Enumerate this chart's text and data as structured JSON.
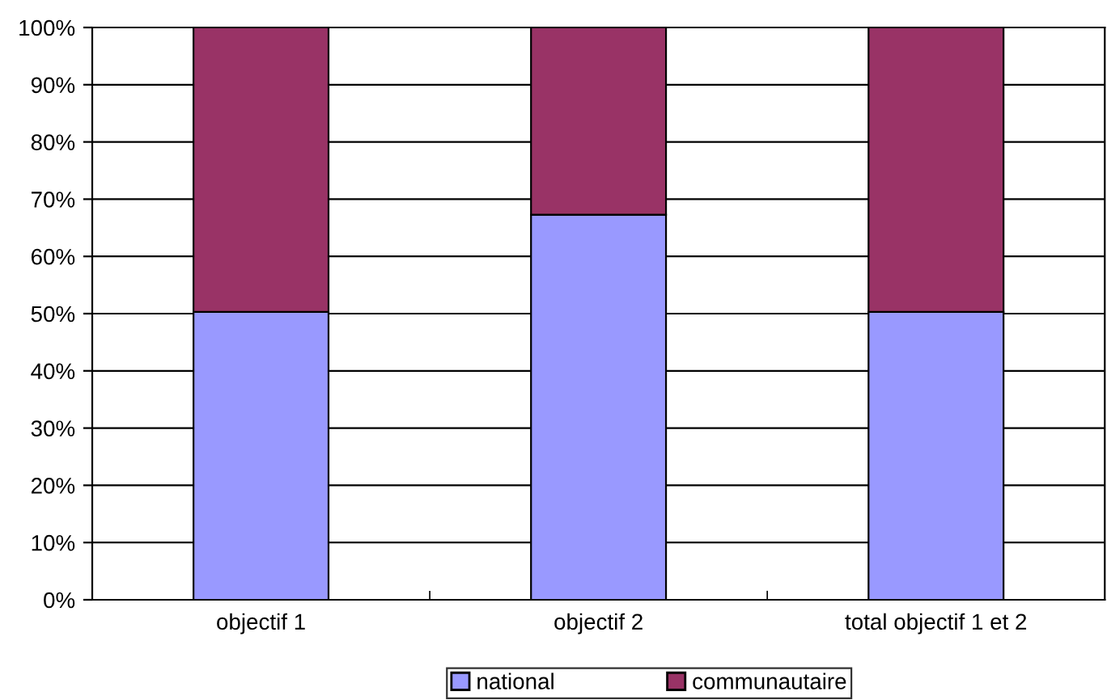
{
  "chart_data": {
    "type": "bar",
    "stacked": true,
    "categories": [
      "objectif 1",
      "objectif 2",
      "total objectif 1 et 2"
    ],
    "series": [
      {
        "name": "national",
        "color": "#9999ff",
        "values": [
          50.3,
          67.3,
          50.3
        ]
      },
      {
        "name": "communautaire",
        "color": "#993366",
        "values": [
          49.7,
          32.7,
          49.7
        ]
      }
    ],
    "ylim": [
      0,
      100
    ],
    "yticks": [
      {
        "value": 0,
        "label": "0%"
      },
      {
        "value": 10,
        "label": "10%"
      },
      {
        "value": 20,
        "label": "20%"
      },
      {
        "value": 30,
        "label": "30%"
      },
      {
        "value": 40,
        "label": "40%"
      },
      {
        "value": 50,
        "label": "50%"
      },
      {
        "value": 60,
        "label": "60%"
      },
      {
        "value": 70,
        "label": "70%"
      },
      {
        "value": 80,
        "label": "80%"
      },
      {
        "value": 90,
        "label": "90%"
      },
      {
        "value": 100,
        "label": "100%"
      }
    ],
    "grid": "y",
    "legend": "bottom"
  }
}
